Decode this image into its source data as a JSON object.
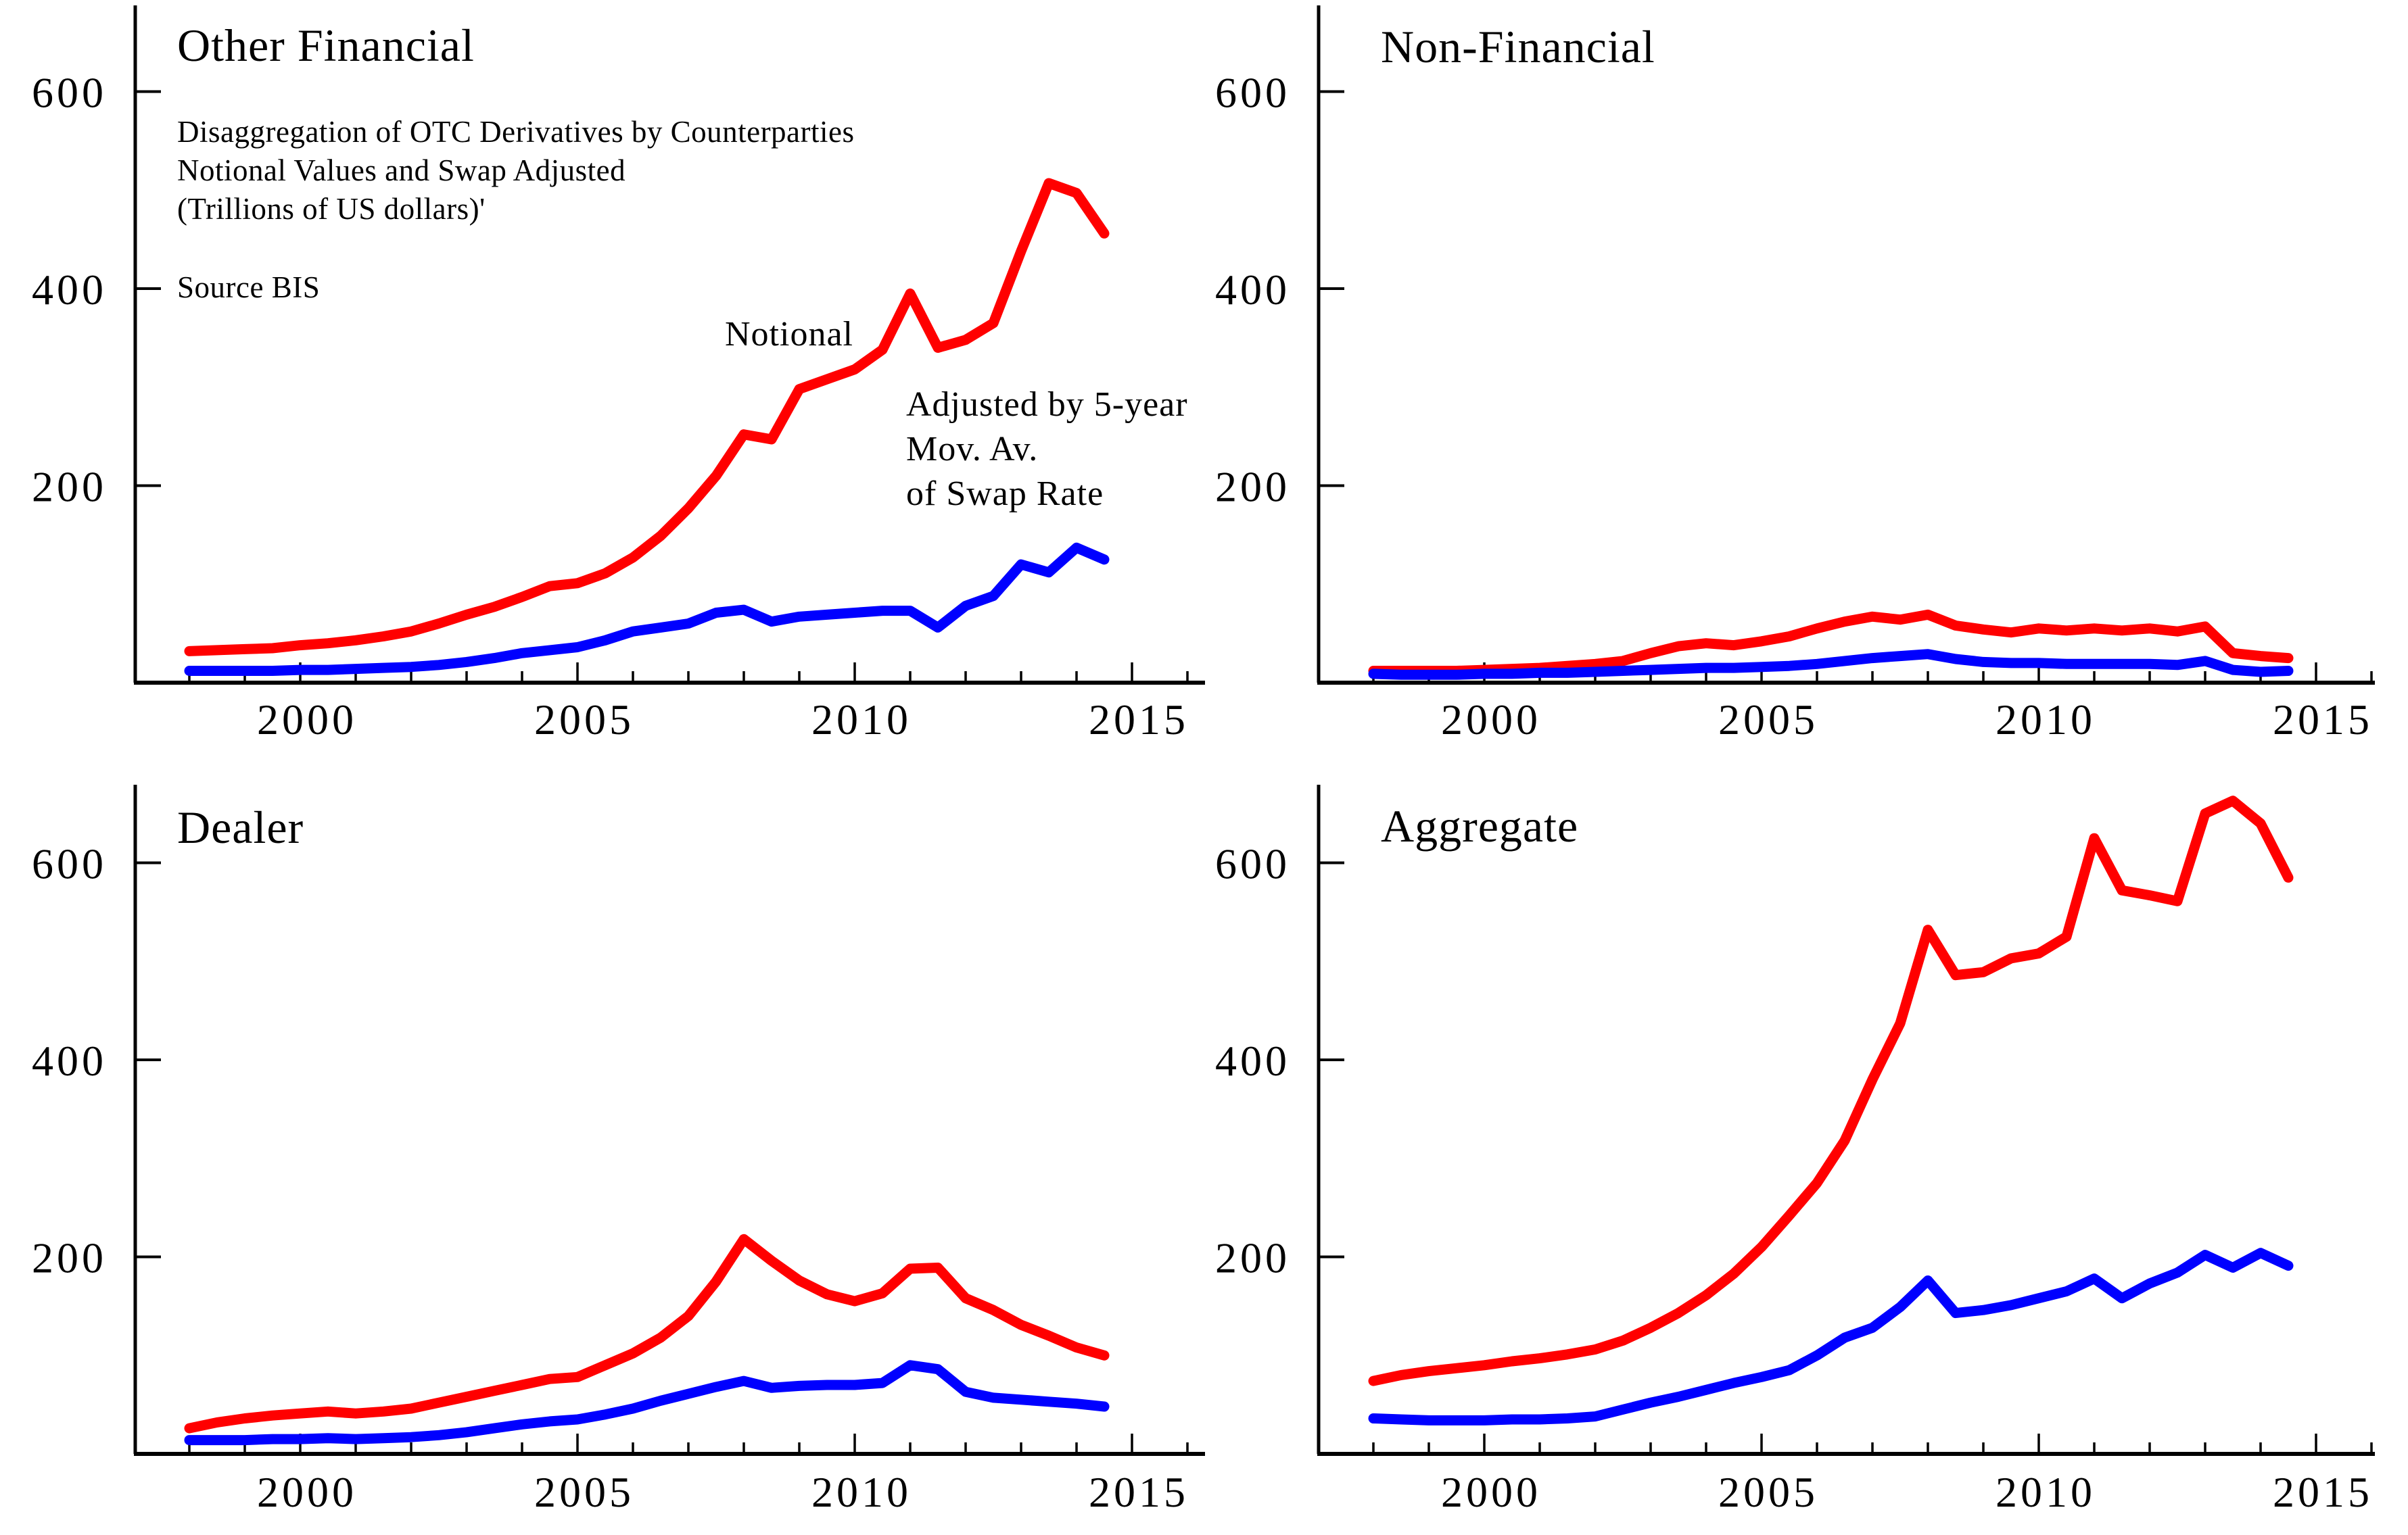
{
  "figure": {
    "annotation_line1": "Disaggregation of OTC Derivatives by Counterparties",
    "annotation_line2": "Notional Values and Swap Adjusted",
    "annotation_line3": "(Trillions of US dollars)'",
    "source": "Source BIS",
    "label_notional": "Notional",
    "label_adjusted_l1": "Adjusted by 5-year",
    "label_adjusted_l2": "Mov. Av.",
    "label_adjusted_l3": "of Swap Rate",
    "colors": {
      "notional": "#ff0000",
      "adjusted": "#0000ff",
      "axis": "#000000"
    }
  },
  "chart_data": [
    {
      "id": "tl",
      "type": "line",
      "title": "Other Financial",
      "xlabel": "",
      "ylabel": "",
      "ylim": [
        0,
        690
      ],
      "yticks": [
        200,
        400,
        600
      ],
      "xticks": [
        2000,
        2005,
        2010,
        2015
      ],
      "minor_xticks_every_year": true,
      "grid": false,
      "legend_position": "none",
      "x": [
        1998,
        1998.5,
        1999,
        1999.5,
        2000,
        2000.5,
        2001,
        2001.5,
        2002,
        2002.5,
        2003,
        2003.5,
        2004,
        2004.5,
        2005,
        2005.5,
        2006,
        2006.5,
        2007,
        2007.5,
        2008,
        2008.5,
        2009,
        2009.5,
        2010,
        2010.5,
        2011,
        2011.5,
        2012,
        2012.5,
        2013,
        2013.5,
        2014,
        2014.5
      ],
      "series": [
        {
          "name": "Notional",
          "color": "#ff0000",
          "values": [
            32,
            33,
            34,
            35,
            38,
            40,
            43,
            47,
            52,
            60,
            69,
            77,
            87,
            98,
            101,
            111,
            127,
            149,
            177,
            210,
            252,
            247,
            298,
            308,
            318,
            338,
            395,
            340,
            348,
            365,
            438,
            507,
            497,
            456
          ]
        },
        {
          "name": "Adjusted by 5-year Mov. Av. of Swap Rate",
          "color": "#0000ff",
          "values": [
            12,
            12,
            12,
            12,
            13,
            13,
            14,
            15,
            16,
            18,
            21,
            25,
            30,
            33,
            36,
            43,
            52,
            56,
            60,
            71,
            74,
            62,
            67,
            69,
            71,
            73,
            73,
            56,
            78,
            88,
            120,
            112,
            137,
            125
          ]
        }
      ]
    },
    {
      "id": "tr",
      "type": "line",
      "title": "Non-Financial",
      "xlabel": "",
      "ylabel": "",
      "ylim": [
        0,
        690
      ],
      "yticks": [
        200,
        400,
        600
      ],
      "xticks": [
        2000,
        2005,
        2010,
        2015
      ],
      "minor_xticks_every_year": true,
      "grid": false,
      "legend_position": "none",
      "x": [
        1998,
        1998.5,
        1999,
        1999.5,
        2000,
        2000.5,
        2001,
        2001.5,
        2002,
        2002.5,
        2003,
        2003.5,
        2004,
        2004.5,
        2005,
        2005.5,
        2006,
        2006.5,
        2007,
        2007.5,
        2008,
        2008.5,
        2009,
        2009.5,
        2010,
        2010.5,
        2011,
        2011.5,
        2012,
        2012.5,
        2013,
        2013.5,
        2014,
        2014.5
      ],
      "series": [
        {
          "name": "Notional",
          "color": "#ff0000",
          "values": [
            12,
            12,
            12,
            12,
            13,
            14,
            15,
            17,
            19,
            22,
            30,
            37,
            40,
            38,
            42,
            47,
            55,
            62,
            67,
            64,
            69,
            58,
            54,
            51,
            55,
            53,
            55,
            53,
            55,
            52,
            57,
            30,
            27,
            25
          ]
        },
        {
          "name": "Adjusted by 5-year Mov. Av. of Swap Rate",
          "color": "#0000ff",
          "values": [
            9,
            8,
            8,
            8,
            9,
            9,
            10,
            10,
            11,
            12,
            13,
            14,
            15,
            15,
            16,
            17,
            19,
            22,
            25,
            27,
            29,
            24,
            21,
            20,
            20,
            19,
            19,
            19,
            19,
            18,
            22,
            13,
            11,
            12
          ]
        }
      ]
    },
    {
      "id": "bl",
      "type": "line",
      "title": "Dealer",
      "xlabel": "",
      "ylabel": "",
      "ylim": [
        0,
        690
      ],
      "yticks": [
        200,
        400,
        600
      ],
      "xticks": [
        2000,
        2005,
        2010,
        2015
      ],
      "minor_xticks_every_year": true,
      "grid": false,
      "legend_position": "none",
      "x": [
        1998,
        1998.5,
        1999,
        1999.5,
        2000,
        2000.5,
        2001,
        2001.5,
        2002,
        2002.5,
        2003,
        2003.5,
        2004,
        2004.5,
        2005,
        2005.5,
        2006,
        2006.5,
        2007,
        2007.5,
        2008,
        2008.5,
        2009,
        2009.5,
        2010,
        2010.5,
        2011,
        2011.5,
        2012,
        2012.5,
        2013,
        2013.5,
        2014,
        2014.5
      ],
      "series": [
        {
          "name": "Notional",
          "color": "#ff0000",
          "values": [
            26,
            32,
            36,
            39,
            41,
            43,
            41,
            43,
            46,
            52,
            58,
            64,
            70,
            76,
            78,
            90,
            102,
            118,
            140,
            175,
            218,
            196,
            176,
            162,
            155,
            163,
            188,
            189,
            158,
            146,
            131,
            120,
            108,
            100
          ]
        },
        {
          "name": "Adjusted by 5-year Mov. Av. of Swap Rate",
          "color": "#0000ff",
          "values": [
            14,
            14,
            14,
            15,
            15,
            16,
            15,
            16,
            17,
            19,
            22,
            26,
            30,
            33,
            35,
            40,
            46,
            54,
            61,
            68,
            74,
            67,
            69,
            70,
            70,
            72,
            90,
            86,
            63,
            57,
            55,
            53,
            51,
            48
          ]
        }
      ]
    },
    {
      "id": "br",
      "type": "line",
      "title": "Aggregate",
      "xlabel": "",
      "ylabel": "",
      "ylim": [
        0,
        690
      ],
      "yticks": [
        200,
        400,
        600
      ],
      "xticks": [
        2000,
        2005,
        2010,
        2015
      ],
      "minor_xticks_every_year": true,
      "grid": false,
      "legend_position": "none",
      "x": [
        1998,
        1998.5,
        1999,
        1999.5,
        2000,
        2000.5,
        2001,
        2001.5,
        2002,
        2002.5,
        2003,
        2003.5,
        2004,
        2004.5,
        2005,
        2005.5,
        2006,
        2006.5,
        2007,
        2007.5,
        2008,
        2008.5,
        2009,
        2009.5,
        2010,
        2010.5,
        2011,
        2011.5,
        2012,
        2012.5,
        2013,
        2013.5,
        2014,
        2014.5
      ],
      "series": [
        {
          "name": "Notional",
          "color": "#ff0000",
          "values": [
            74,
            80,
            84,
            87,
            90,
            94,
            97,
            101,
            106,
            115,
            128,
            143,
            161,
            183,
            210,
            242,
            275,
            318,
            380,
            437,
            532,
            486,
            489,
            503,
            508,
            525,
            625,
            572,
            567,
            561,
            650,
            663,
            640,
            585
          ]
        },
        {
          "name": "Adjusted by 5-year Mov. Av. of Swap Rate",
          "color": "#0000ff",
          "values": [
            36,
            35,
            34,
            34,
            34,
            35,
            35,
            36,
            38,
            45,
            52,
            58,
            65,
            72,
            78,
            85,
            100,
            118,
            128,
            149,
            176,
            143,
            146,
            151,
            158,
            165,
            178,
            158,
            173,
            184,
            202,
            189,
            204,
            191
          ]
        }
      ]
    }
  ]
}
